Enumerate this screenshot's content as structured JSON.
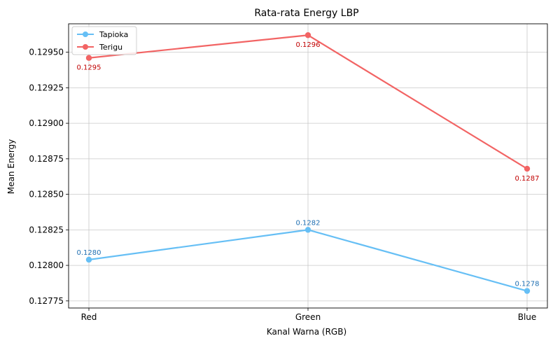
{
  "chart_data": {
    "type": "line",
    "title": "Rata-rata Energy LBP",
    "xlabel": "Kanal Warna (RGB)",
    "ylabel": "Mean Energy",
    "categories": [
      "Red",
      "Green",
      "Blue"
    ],
    "ylim": [
      0.1277,
      0.1297
    ],
    "yticks": [
      0.12775,
      0.128,
      0.12825,
      0.1285,
      0.12875,
      0.129,
      0.12925,
      0.1295
    ],
    "ytick_labels": [
      "0.12775",
      "0.12800",
      "0.12825",
      "0.12850",
      "0.12875",
      "0.12900",
      "0.12925",
      "0.12950"
    ],
    "grid": true,
    "legend_position": "top-left",
    "series": [
      {
        "name": "Tapioka",
        "color": "#66bff5",
        "label_color": "#1f6fb2",
        "values": [
          0.12804,
          0.12825,
          0.12782
        ],
        "point_labels": [
          "0.1280",
          "0.1282",
          "0.1278"
        ],
        "label_position": "above"
      },
      {
        "name": "Terigu",
        "color": "#f26464",
        "label_color": "#c00000",
        "values": [
          0.12946,
          0.12962,
          0.12868
        ],
        "point_labels": [
          "0.1295",
          "0.1296",
          "0.1287"
        ],
        "label_position": "below"
      }
    ]
  }
}
